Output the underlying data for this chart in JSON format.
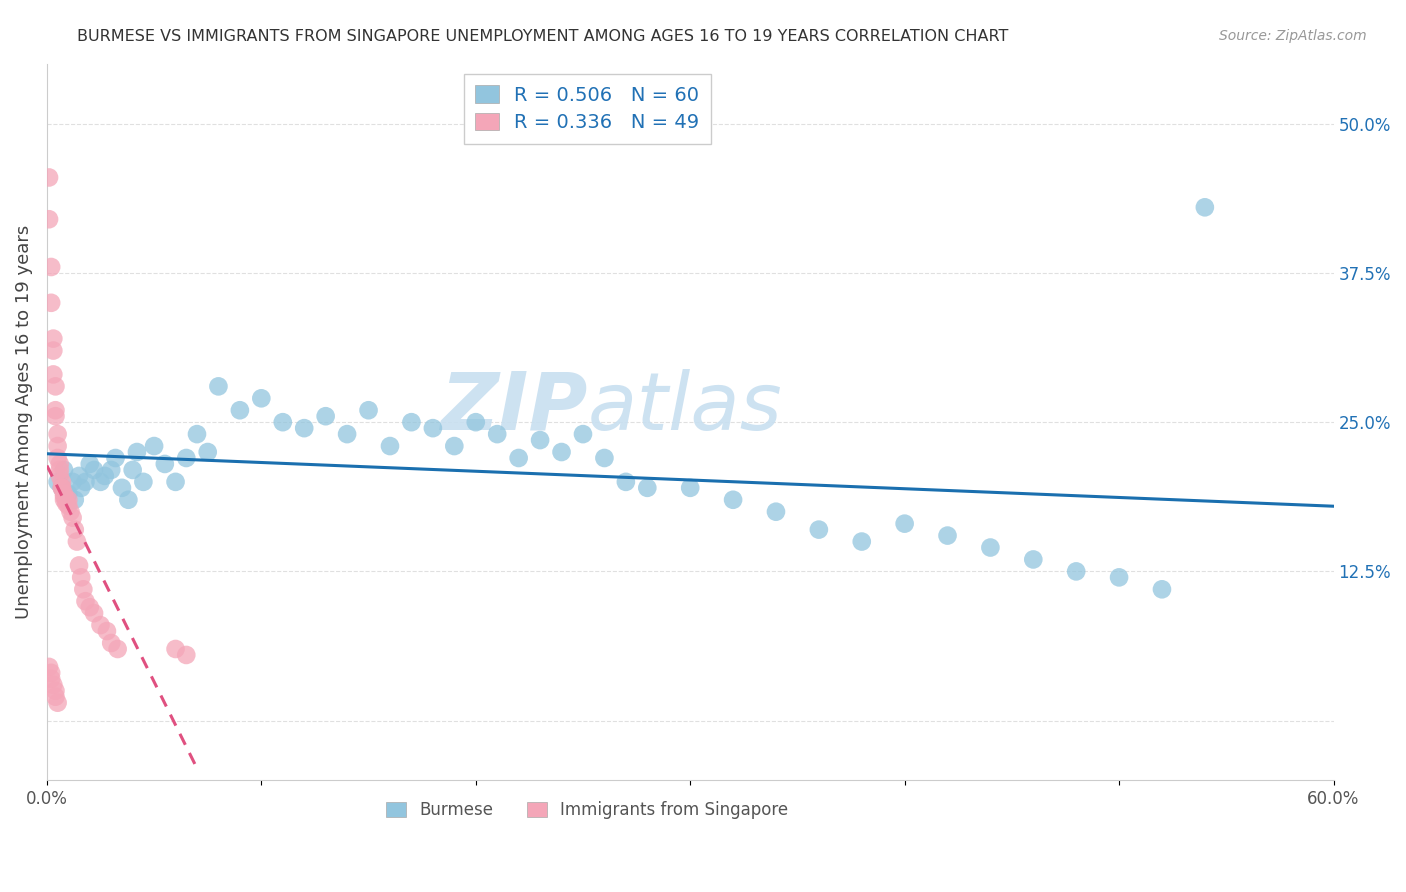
{
  "title": "BURMESE VS IMMIGRANTS FROM SINGAPORE UNEMPLOYMENT AMONG AGES 16 TO 19 YEARS CORRELATION CHART",
  "source": "Source: ZipAtlas.com",
  "ylabel": "Unemployment Among Ages 16 to 19 years",
  "xlim": [
    0.0,
    0.6
  ],
  "ylim": [
    -0.05,
    0.55
  ],
  "xtick_positions": [
    0.0,
    0.1,
    0.2,
    0.3,
    0.4,
    0.5,
    0.6
  ],
  "xticklabels": [
    "0.0%",
    "",
    "",
    "",
    "",
    "",
    "60.0%"
  ],
  "ytick_positions": [
    0.0,
    0.125,
    0.25,
    0.375,
    0.5
  ],
  "ytick_labels": [
    "",
    "12.5%",
    "25.0%",
    "37.5%",
    "50.0%"
  ],
  "R_blue": 0.506,
  "N_blue": 60,
  "R_pink": 0.336,
  "N_pink": 49,
  "color_blue": "#92c5de",
  "color_pink": "#f4a6b8",
  "color_blue_line": "#1a6faf",
  "color_pink_line": "#e05080",
  "color_text_blue": "#2171b5",
  "watermark_text": "ZIP atlas",
  "watermark_color": "#c8dff0",
  "background_color": "#ffffff",
  "grid_color": "#e0e0e0",
  "blue_x": [
    0.005,
    0.007,
    0.008,
    0.01,
    0.012,
    0.013,
    0.015,
    0.016,
    0.018,
    0.02,
    0.022,
    0.025,
    0.027,
    0.03,
    0.032,
    0.035,
    0.038,
    0.04,
    0.042,
    0.045,
    0.05,
    0.055,
    0.06,
    0.065,
    0.07,
    0.075,
    0.08,
    0.09,
    0.1,
    0.11,
    0.12,
    0.13,
    0.14,
    0.15,
    0.16,
    0.17,
    0.18,
    0.19,
    0.2,
    0.21,
    0.22,
    0.23,
    0.24,
    0.25,
    0.26,
    0.27,
    0.28,
    0.3,
    0.32,
    0.34,
    0.36,
    0.38,
    0.4,
    0.42,
    0.44,
    0.46,
    0.48,
    0.5,
    0.52,
    0.54
  ],
  "blue_y": [
    0.2,
    0.195,
    0.21,
    0.19,
    0.2,
    0.185,
    0.205,
    0.195,
    0.2,
    0.215,
    0.21,
    0.2,
    0.205,
    0.21,
    0.22,
    0.195,
    0.185,
    0.21,
    0.225,
    0.2,
    0.23,
    0.215,
    0.2,
    0.22,
    0.24,
    0.225,
    0.28,
    0.26,
    0.27,
    0.25,
    0.245,
    0.255,
    0.24,
    0.26,
    0.23,
    0.25,
    0.245,
    0.23,
    0.25,
    0.24,
    0.22,
    0.235,
    0.225,
    0.24,
    0.22,
    0.2,
    0.195,
    0.195,
    0.185,
    0.175,
    0.16,
    0.15,
    0.165,
    0.155,
    0.145,
    0.135,
    0.125,
    0.12,
    0.11,
    0.43
  ],
  "pink_x": [
    0.001,
    0.001,
    0.002,
    0.002,
    0.003,
    0.003,
    0.003,
    0.004,
    0.004,
    0.004,
    0.005,
    0.005,
    0.005,
    0.006,
    0.006,
    0.006,
    0.007,
    0.007,
    0.007,
    0.008,
    0.008,
    0.008,
    0.009,
    0.009,
    0.01,
    0.01,
    0.011,
    0.012,
    0.013,
    0.014,
    0.015,
    0.016,
    0.017,
    0.018,
    0.02,
    0.022,
    0.025,
    0.028,
    0.03,
    0.033,
    0.001,
    0.002,
    0.002,
    0.003,
    0.004,
    0.004,
    0.005,
    0.06,
    0.065
  ],
  "pink_y": [
    0.455,
    0.42,
    0.38,
    0.35,
    0.32,
    0.31,
    0.29,
    0.28,
    0.26,
    0.255,
    0.24,
    0.23,
    0.22,
    0.215,
    0.21,
    0.205,
    0.2,
    0.195,
    0.195,
    0.19,
    0.185,
    0.188,
    0.185,
    0.182,
    0.185,
    0.18,
    0.175,
    0.17,
    0.16,
    0.15,
    0.13,
    0.12,
    0.11,
    0.1,
    0.095,
    0.09,
    0.08,
    0.075,
    0.065,
    0.06,
    0.045,
    0.04,
    0.035,
    0.03,
    0.025,
    0.02,
    0.015,
    0.06,
    0.055
  ]
}
